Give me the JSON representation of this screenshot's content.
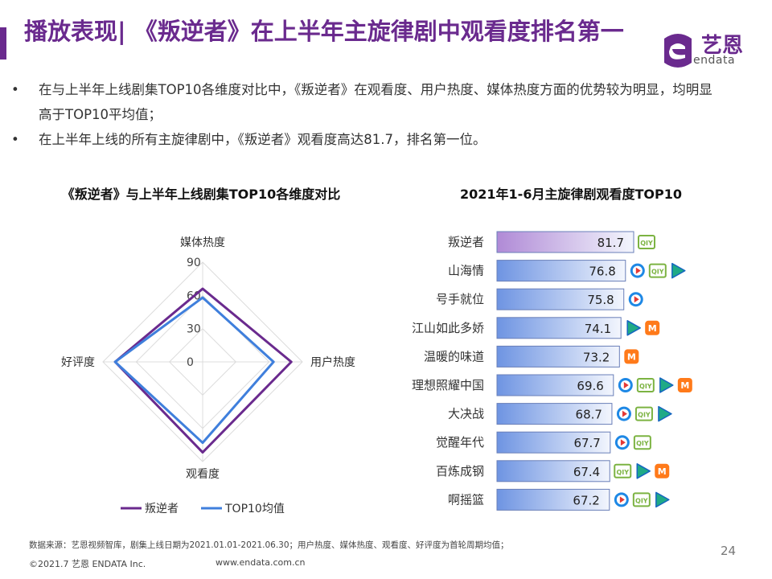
{
  "title": "播放表现| 《叛逆者》在上半年主旋律剧中观看度排名第一",
  "logo": {
    "cn": "艺恩",
    "en": "endata"
  },
  "bullets": [
    "在与上半年上线剧集TOP10各维度对比中，《叛逆者》在观看度、用户热度、媒体热度方面的优势较为明显，均明显高于TOP10平均值；",
    "在上半年上线的所有主旋律剧中，《叛逆者》观看度高达81.7，排名第一位。"
  ],
  "bullet_symbol": "•",
  "colors": {
    "brand": "#6a2a8e",
    "series_main": "#6a2a8e",
    "series_avg": "#3f7fdc",
    "bar_first": "#b08ad6",
    "bar_other": "#6e94e2",
    "tencent": "#1e88e5",
    "iqiyi": "#7cb342",
    "youku": "#1faa86",
    "mgtv": "#ff7a1a"
  },
  "chart_data": [
    {
      "type": "radar",
      "title": "《叛逆者》与上半年上线剧集TOP10各维度对比",
      "axes": [
        "媒体热度",
        "用户热度",
        "观看度",
        "好评度"
      ],
      "ticks": [
        0,
        30,
        60,
        90
      ],
      "range": [
        0,
        90
      ],
      "series": [
        {
          "name": "叛逆者",
          "values": [
            66,
            80,
            81.7,
            79
          ]
        },
        {
          "name": "TOP10均值",
          "values": [
            58,
            64,
            73,
            79
          ]
        }
      ],
      "legend": "bottom"
    },
    {
      "type": "bar",
      "orientation": "horizontal",
      "title": "2021年1-6月主旋律剧观看度TOP10",
      "categories": [
        "叛逆者",
        "山海情",
        "号手就位",
        "江山如此多娇",
        "温暖的味道",
        "理想照耀中国",
        "大决战",
        "觉醒年代",
        "百炼成钢",
        "啊摇篮"
      ],
      "values": [
        81.7,
        76.8,
        75.8,
        74.1,
        73.2,
        69.6,
        68.7,
        67.7,
        67.4,
        67.2
      ],
      "value_labels": [
        "81.7",
        "76.8",
        "75.8",
        "74.1",
        "73.2",
        "69.6",
        "68.7",
        "67.7",
        "67.4",
        "67.2"
      ],
      "platforms": [
        [
          "iqiyi"
        ],
        [
          "tencent",
          "iqiyi",
          "youku"
        ],
        [
          "tencent"
        ],
        [
          "youku",
          "mgtv"
        ],
        [
          "mgtv"
        ],
        [
          "tencent",
          "iqiyi",
          "youku",
          "mgtv"
        ],
        [
          "tencent",
          "iqiyi",
          "youku"
        ],
        [
          "tencent",
          "iqiyi"
        ],
        [
          "iqiyi",
          "youku",
          "mgtv"
        ],
        [
          "tencent",
          "iqiyi",
          "youku"
        ]
      ],
      "platform_icon_text": {
        "iqiyi": "QIY",
        "mgtv": "M"
      }
    }
  ],
  "footer": {
    "note": "数据来源：艺恩视频智库，剧集上线日期为2021.01.01-2021.06.30；用户热度、媒体热度、观看度、好评度为首轮周期均值；",
    "copyright": "©2021.7 艺恩 ENDATA Inc.",
    "url": "www.endata.com.cn",
    "page": "24"
  }
}
